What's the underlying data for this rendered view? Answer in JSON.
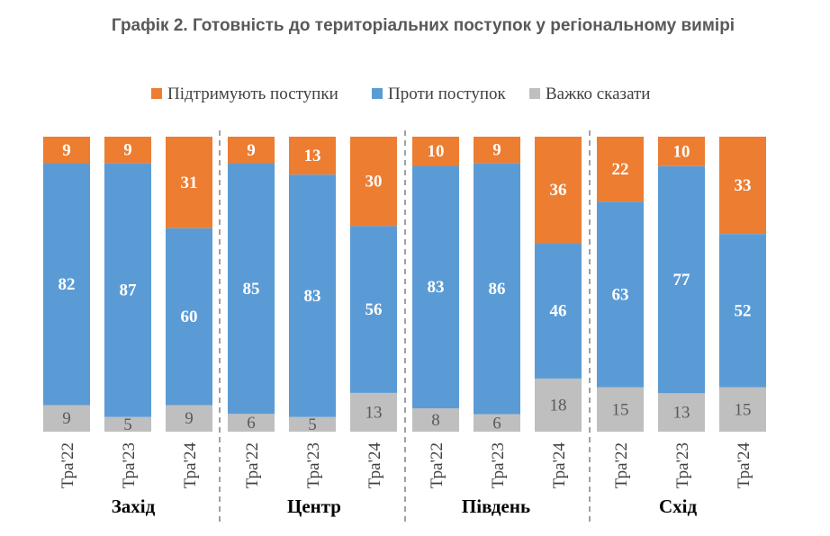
{
  "chart_data": {
    "type": "bar",
    "stacked": true,
    "normalized_percent": true,
    "title": "Графік 2. Готовність до територіальних поступок у регіональному вимірі",
    "legend_position": "top",
    "groups": [
      "Захід",
      "Центр",
      "Південь",
      "Схід"
    ],
    "categories": [
      "Тра'22",
      "Тра'23",
      "Тра'24"
    ],
    "series": [
      {
        "name": "Підтримують поступки",
        "color": "#ED7D31",
        "values": [
          [
            9,
            9,
            31
          ],
          [
            9,
            13,
            30
          ],
          [
            10,
            9,
            36
          ],
          [
            22,
            10,
            33
          ]
        ]
      },
      {
        "name": "Проти поступок",
        "color": "#5B9BD5",
        "values": [
          [
            82,
            87,
            60
          ],
          [
            85,
            83,
            56
          ],
          [
            83,
            86,
            46
          ],
          [
            63,
            77,
            52
          ]
        ]
      },
      {
        "name": "Важко сказати",
        "color": "#BFBFBF",
        "values": [
          [
            9,
            5,
            9
          ],
          [
            6,
            5,
            13
          ],
          [
            8,
            6,
            18
          ],
          [
            15,
            13,
            15
          ]
        ]
      }
    ],
    "grid": false,
    "group_separators": "dashed"
  }
}
